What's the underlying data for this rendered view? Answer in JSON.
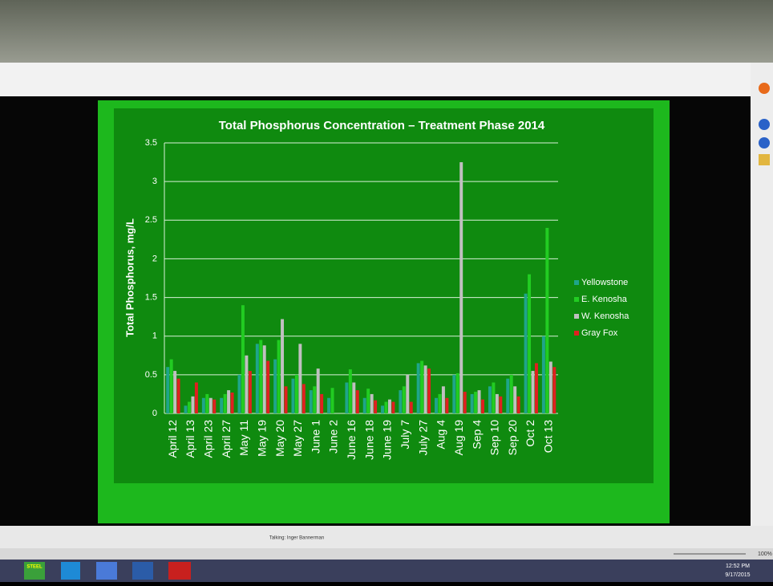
{
  "window": {
    "caption": "Talking: Inger Bannerman",
    "zoom": "100%"
  },
  "taskbar": {
    "app_label": "STEEL",
    "time": "12:52 PM",
    "date": "9/17/2015"
  },
  "chart_data": {
    "type": "bar",
    "title": "Total Phosphorus  Concentration – Treatment Phase 2014",
    "y_label": "Total Phosphorus, mg/L",
    "categories": [
      "April 12",
      "April 13",
      "April 23",
      "April 27",
      "May 11",
      "May 19",
      "May 20",
      "May 27",
      "June 1",
      "June 2",
      "June 16",
      "June 18",
      "June 19",
      "July 7",
      "July 27",
      "Aug 4",
      "Aug 19",
      "Sep 4",
      "Sep 10",
      "Sep 20",
      "Oct 2",
      "Oct 13"
    ],
    "series": [
      {
        "name": "Yellowstone",
        "color": "#1fa58a",
        "values": [
          0.6,
          0.1,
          0.2,
          0.2,
          0.5,
          0.9,
          0.7,
          0.45,
          0.3,
          0.2,
          0.4,
          0.2,
          0.1,
          0.3,
          0.65,
          0.2,
          0.5,
          0.25,
          0.35,
          0.45,
          1.55,
          1.0
        ]
      },
      {
        "name": "E. Kenosha",
        "color": "#22cc22",
        "values": [
          0.7,
          0.15,
          0.25,
          0.25,
          1.4,
          0.95,
          0.95,
          0.5,
          0.35,
          0.33,
          0.57,
          0.32,
          0.15,
          0.35,
          0.68,
          0.25,
          0.52,
          0.28,
          0.4,
          0.5,
          1.8,
          2.4
        ]
      },
      {
        "name": "W. Kenosha",
        "color": "#c0c0c0",
        "values": [
          0.55,
          0.22,
          0.2,
          0.3,
          0.75,
          0.88,
          1.22,
          0.9,
          0.58,
          0,
          0.4,
          0.25,
          0.18,
          0.5,
          0.62,
          0.35,
          3.25,
          0.3,
          0.25,
          0.35,
          0.55,
          0.67
        ]
      },
      {
        "name": "Gray Fox",
        "color": "#e02020",
        "values": [
          0.45,
          0.4,
          0.18,
          0.27,
          0.55,
          0.68,
          0.35,
          0.38,
          0.25,
          0,
          0.3,
          0.17,
          0.15,
          0.15,
          0.58,
          0.2,
          0.28,
          0.18,
          0.22,
          0.22,
          0.65,
          0.6
        ]
      }
    ],
    "ylim": [
      0,
      3.5
    ],
    "yticks": [
      0,
      0.5,
      1,
      1.5,
      2,
      2.5,
      3,
      3.5
    ],
    "grid": true
  }
}
